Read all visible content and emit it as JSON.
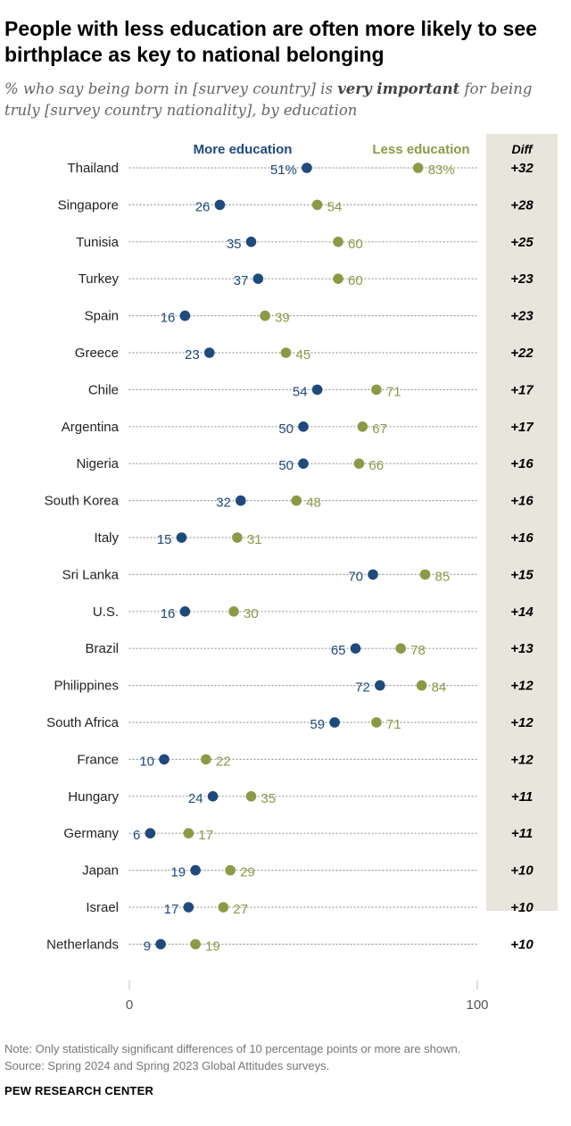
{
  "header": {
    "title": "People with less education are often more likely to see birthplace as key to national belonging",
    "subtitle_pre": "% who say being born in [survey country] is ",
    "subtitle_em": "very important",
    "subtitle_post": " for being truly [survey country nationality], by education"
  },
  "colors": {
    "more": "#1f4a7c",
    "less": "#8c9a45",
    "diff_bg": "#e8e5dc",
    "dots": "#9a9a9a"
  },
  "chart_data": {
    "type": "dot",
    "series_labels": {
      "more": "More education",
      "less": "Less education",
      "diff": "Diff"
    },
    "xlim": [
      0,
      100
    ],
    "x_ticks": [
      "0",
      "100"
    ],
    "rows": [
      {
        "country": "Thailand",
        "more": 51,
        "less": 83,
        "more_label": "51%",
        "less_label": "83%",
        "diff": "+32"
      },
      {
        "country": "Singapore",
        "more": 26,
        "less": 54,
        "more_label": "26",
        "less_label": "54",
        "diff": "+28"
      },
      {
        "country": "Tunisia",
        "more": 35,
        "less": 60,
        "more_label": "35",
        "less_label": "60",
        "diff": "+25"
      },
      {
        "country": "Turkey",
        "more": 37,
        "less": 60,
        "more_label": "37",
        "less_label": "60",
        "diff": "+23"
      },
      {
        "country": "Spain",
        "more": 16,
        "less": 39,
        "more_label": "16",
        "less_label": "39",
        "diff": "+23"
      },
      {
        "country": "Greece",
        "more": 23,
        "less": 45,
        "more_label": "23",
        "less_label": "45",
        "diff": "+22"
      },
      {
        "country": "Chile",
        "more": 54,
        "less": 71,
        "more_label": "54",
        "less_label": "71",
        "diff": "+17"
      },
      {
        "country": "Argentina",
        "more": 50,
        "less": 67,
        "more_label": "50",
        "less_label": "67",
        "diff": "+17"
      },
      {
        "country": "Nigeria",
        "more": 50,
        "less": 66,
        "more_label": "50",
        "less_label": "66",
        "diff": "+16"
      },
      {
        "country": "South Korea",
        "more": 32,
        "less": 48,
        "more_label": "32",
        "less_label": "48",
        "diff": "+16"
      },
      {
        "country": "Italy",
        "more": 15,
        "less": 31,
        "more_label": "15",
        "less_label": "31",
        "diff": "+16"
      },
      {
        "country": "Sri Lanka",
        "more": 70,
        "less": 85,
        "more_label": "70",
        "less_label": "85",
        "diff": "+15"
      },
      {
        "country": "U.S.",
        "more": 16,
        "less": 30,
        "more_label": "16",
        "less_label": "30",
        "diff": "+14"
      },
      {
        "country": "Brazil",
        "more": 65,
        "less": 78,
        "more_label": "65",
        "less_label": "78",
        "diff": "+13"
      },
      {
        "country": "Philippines",
        "more": 72,
        "less": 84,
        "more_label": "72",
        "less_label": "84",
        "diff": "+12"
      },
      {
        "country": "South Africa",
        "more": 59,
        "less": 71,
        "more_label": "59",
        "less_label": "71",
        "diff": "+12"
      },
      {
        "country": "France",
        "more": 10,
        "less": 22,
        "more_label": "10",
        "less_label": "22",
        "diff": "+12"
      },
      {
        "country": "Hungary",
        "more": 24,
        "less": 35,
        "more_label": "24",
        "less_label": "35",
        "diff": "+11"
      },
      {
        "country": "Germany",
        "more": 6,
        "less": 17,
        "more_label": "6",
        "less_label": "17",
        "diff": "+11"
      },
      {
        "country": "Japan",
        "more": 19,
        "less": 29,
        "more_label": "19",
        "less_label": "29",
        "diff": "+10"
      },
      {
        "country": "Israel",
        "more": 17,
        "less": 27,
        "more_label": "17",
        "less_label": "27",
        "diff": "+10"
      },
      {
        "country": "Netherlands",
        "more": 9,
        "less": 19,
        "more_label": "9",
        "less_label": "19",
        "diff": "+10"
      }
    ]
  },
  "footer": {
    "note": "Note: Only statistically significant differences of 10 percentage points or more are shown.",
    "source": "Source: Spring 2024 and Spring 2023 Global Attitudes surveys.",
    "org": "PEW RESEARCH CENTER"
  }
}
